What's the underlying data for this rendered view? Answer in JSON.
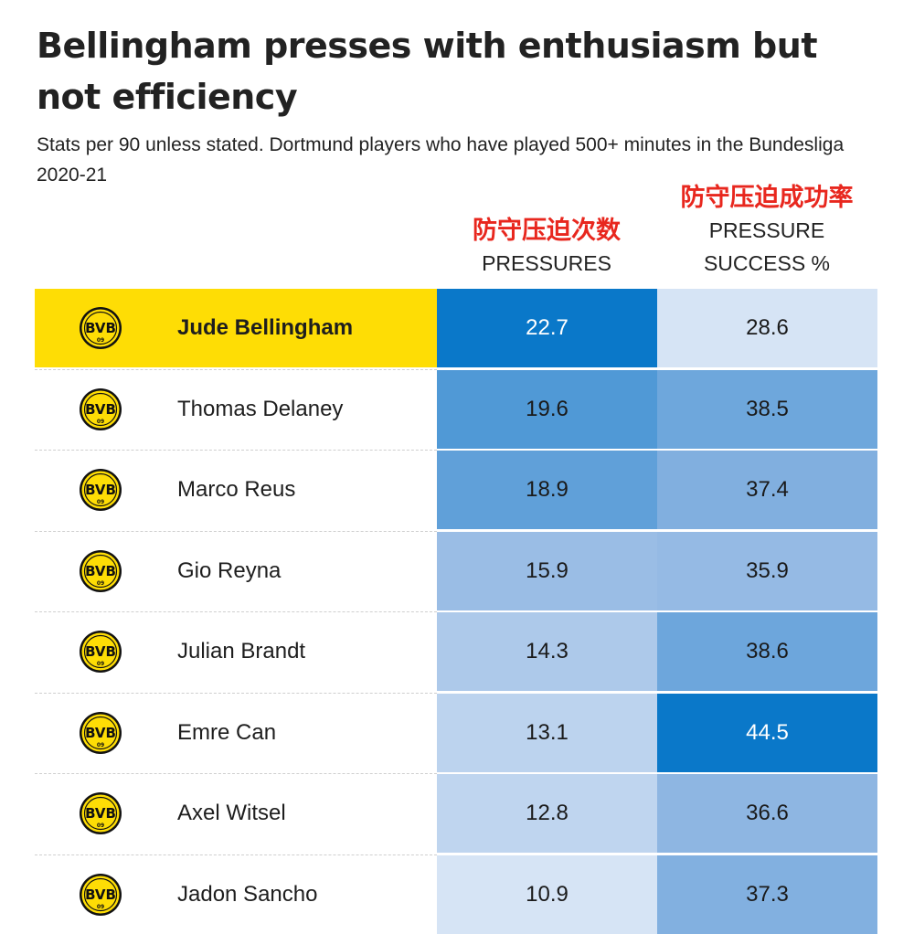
{
  "chart_data": {
    "type": "table",
    "title": "Bellingham presses with enthusiasm but not efficiency",
    "subtitle": "Stats per 90 unless stated. Dortmund players who have played 500+ minutes in the Bundesliga 2020-21",
    "columns": [
      {
        "key": "pressures",
        "label_cn": "防守压迫次数",
        "label": "PRESSURES"
      },
      {
        "key": "success",
        "label_cn": "防守压迫成功率",
        "label": "PRESSURE SUCCESS %"
      }
    ],
    "logo_text": "BVB",
    "logo_year": "09",
    "rows": [
      {
        "player": "Jude Bellingham",
        "pressures": "22.7",
        "success": "28.6",
        "highlight": true
      },
      {
        "player": "Thomas Delaney",
        "pressures": "19.6",
        "success": "38.5",
        "highlight": false
      },
      {
        "player": "Marco Reus",
        "pressures": "18.9",
        "success": "37.4",
        "highlight": false
      },
      {
        "player": "Gio Reyna",
        "pressures": "15.9",
        "success": "35.9",
        "highlight": false
      },
      {
        "player": "Julian Brandt",
        "pressures": "14.3",
        "success": "38.6",
        "highlight": false
      },
      {
        "player": "Emre Can",
        "pressures": "13.1",
        "success": "44.5",
        "highlight": false
      },
      {
        "player": "Axel Witsel",
        "pressures": "12.8",
        "success": "36.6",
        "highlight": false
      },
      {
        "player": "Jadon Sancho",
        "pressures": "10.9",
        "success": "37.3",
        "highlight": false
      }
    ],
    "highlight_color": "#fedd05",
    "scale_colors": {
      "low": "#d6e4f5",
      "mid": "#8fb6e2",
      "high": "#0a78c9"
    }
  }
}
